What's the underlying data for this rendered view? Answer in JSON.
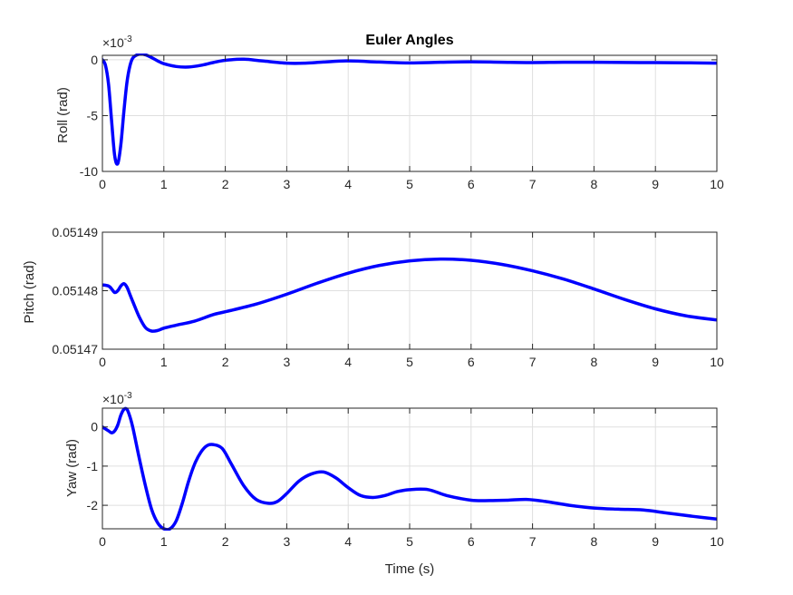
{
  "figure": {
    "title": "Euler Angles",
    "line_color": "#0000FF",
    "grid_color": "#DFDFDF",
    "axis_color": "#262626"
  },
  "chart_data": [
    {
      "type": "line",
      "id": "roll",
      "title": "Euler Angles",
      "xlabel": "",
      "ylabel": "Roll (rad)",
      "multiplier": "×10",
      "exponent": "-3",
      "xlim": [
        0,
        10
      ],
      "ylim": [
        -10,
        0.4
      ],
      "grid": true,
      "x_ticks": [
        0,
        1,
        2,
        3,
        4,
        5,
        6,
        7,
        8,
        9,
        10
      ],
      "x_tick_labels": [
        "0",
        "1",
        "2",
        "3",
        "4",
        "5",
        "6",
        "7",
        "8",
        "9",
        "10"
      ],
      "y_ticks": [
        -10,
        -5,
        0
      ],
      "y_tick_labels": [
        "-10",
        "-5",
        "0"
      ],
      "series": [
        {
          "color": "#0000FF",
          "x": [
            0,
            0.05,
            0.1,
            0.15,
            0.2,
            0.25,
            0.3,
            0.35,
            0.4,
            0.45,
            0.5,
            0.6,
            0.7,
            0.8,
            0.9,
            1.0,
            1.2,
            1.4,
            1.6,
            1.8,
            2.0,
            2.3,
            2.6,
            3.0,
            3.3,
            3.6,
            4.0,
            4.5,
            5.0,
            5.5,
            6.0,
            6.5,
            7.0,
            7.5,
            8.0,
            8.5,
            9.0,
            9.5,
            10.0
          ],
          "y": [
            0,
            -0.5,
            -2.2,
            -5.5,
            -8.6,
            -9.3,
            -7.6,
            -4.6,
            -2.0,
            -0.5,
            0.2,
            0.5,
            0.45,
            0.2,
            -0.1,
            -0.35,
            -0.6,
            -0.65,
            -0.5,
            -0.25,
            -0.05,
            0.05,
            -0.1,
            -0.3,
            -0.3,
            -0.2,
            -0.1,
            -0.2,
            -0.28,
            -0.22,
            -0.18,
            -0.22,
            -0.25,
            -0.22,
            -0.22,
            -0.24,
            -0.25,
            -0.27,
            -0.3
          ]
        }
      ]
    },
    {
      "type": "line",
      "id": "pitch",
      "title": "",
      "xlabel": "",
      "ylabel": "Pitch (rad)",
      "xlim": [
        0,
        10
      ],
      "ylim": [
        0.05147,
        0.05149
      ],
      "grid": true,
      "x_ticks": [
        0,
        1,
        2,
        3,
        4,
        5,
        6,
        7,
        8,
        9,
        10
      ],
      "x_tick_labels": [
        "0",
        "1",
        "2",
        "3",
        "4",
        "5",
        "6",
        "7",
        "8",
        "9",
        "10"
      ],
      "y_ticks": [
        0.05147,
        0.05148,
        0.05149
      ],
      "y_tick_labels": [
        "0.05147",
        "0.05148",
        "0.05149"
      ],
      "series": [
        {
          "color": "#0000FF",
          "x": [
            0,
            0.1,
            0.15,
            0.2,
            0.25,
            0.3,
            0.35,
            0.4,
            0.45,
            0.5,
            0.6,
            0.7,
            0.8,
            0.9,
            1.0,
            1.2,
            1.5,
            1.8,
            2.0,
            2.5,
            3.0,
            3.5,
            4.0,
            4.5,
            5.0,
            5.5,
            6.0,
            6.5,
            7.0,
            7.5,
            8.0,
            8.5,
            9.0,
            9.5,
            10.0
          ],
          "y": [
            0.051481,
            0.0514808,
            0.0514803,
            0.0514797,
            0.05148,
            0.0514808,
            0.0514812,
            0.0514806,
            0.0514793,
            0.051478,
            0.0514755,
            0.0514737,
            0.0514731,
            0.0514732,
            0.0514736,
            0.0514741,
            0.0514748,
            0.0514759,
            0.0514764,
            0.0514777,
            0.0514794,
            0.0514813,
            0.051483,
            0.0514843,
            0.0514851,
            0.0514854,
            0.0514852,
            0.0514845,
            0.0514834,
            0.051482,
            0.0514803,
            0.0514785,
            0.0514769,
            0.0514757,
            0.051475
          ]
        }
      ]
    },
    {
      "type": "line",
      "id": "yaw",
      "title": "",
      "xlabel": "Time (s)",
      "ylabel": "Yaw (rad)",
      "multiplier": "×10",
      "exponent": "-3",
      "xlim": [
        0,
        10
      ],
      "ylim": [
        -2.6,
        0.48
      ],
      "grid": true,
      "x_ticks": [
        0,
        1,
        2,
        3,
        4,
        5,
        6,
        7,
        8,
        9,
        10
      ],
      "x_tick_labels": [
        "0",
        "1",
        "2",
        "3",
        "4",
        "5",
        "6",
        "7",
        "8",
        "9",
        "10"
      ],
      "y_ticks": [
        -2,
        -1,
        0
      ],
      "y_tick_labels": [
        "-2",
        "-1",
        "0"
      ],
      "series": [
        {
          "color": "#0000FF",
          "x": [
            0,
            0.1,
            0.15,
            0.2,
            0.25,
            0.3,
            0.35,
            0.4,
            0.45,
            0.5,
            0.6,
            0.7,
            0.8,
            0.9,
            1.0,
            1.1,
            1.2,
            1.3,
            1.4,
            1.5,
            1.6,
            1.7,
            1.8,
            1.95,
            2.1,
            2.3,
            2.5,
            2.7,
            2.85,
            3.0,
            3.2,
            3.4,
            3.6,
            3.8,
            4.0,
            4.2,
            4.4,
            4.6,
            4.8,
            5.0,
            5.3,
            5.6,
            6.0,
            6.3,
            6.6,
            6.9,
            7.2,
            7.6,
            8.0,
            8.4,
            8.8,
            9.2,
            9.6,
            10.0
          ],
          "y": [
            0,
            -0.1,
            -0.15,
            -0.1,
            0.05,
            0.3,
            0.45,
            0.45,
            0.25,
            -0.05,
            -0.8,
            -1.5,
            -2.1,
            -2.45,
            -2.6,
            -2.6,
            -2.4,
            -1.95,
            -1.4,
            -0.95,
            -0.65,
            -0.48,
            -0.45,
            -0.55,
            -0.95,
            -1.5,
            -1.85,
            -1.95,
            -1.9,
            -1.7,
            -1.38,
            -1.2,
            -1.15,
            -1.3,
            -1.55,
            -1.75,
            -1.8,
            -1.75,
            -1.65,
            -1.6,
            -1.6,
            -1.75,
            -1.87,
            -1.88,
            -1.87,
            -1.85,
            -1.9,
            -2.0,
            -2.07,
            -2.1,
            -2.12,
            -2.2,
            -2.28,
            -2.35
          ]
        }
      ]
    }
  ]
}
